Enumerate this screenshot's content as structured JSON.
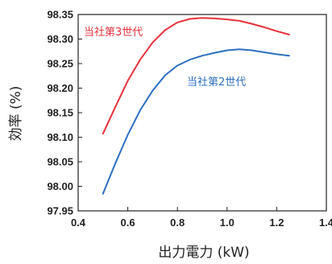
{
  "chart_data": {
    "type": "line",
    "title": "",
    "xlabel": "出力電力 (kW)",
    "ylabel": "効率 (%)",
    "xlim": [
      0.4,
      1.4
    ],
    "ylim": [
      97.95,
      98.35
    ],
    "x_ticks": [
      "0.4",
      "0.6",
      "0.8",
      "1.0",
      "1.2",
      "1.4"
    ],
    "y_ticks": [
      "97.95",
      "98.00",
      "98.05",
      "98.10",
      "98.15",
      "98.20",
      "98.25",
      "98.30",
      "98.35"
    ],
    "grid": false,
    "legend": "none",
    "series": [
      {
        "name": "当社第3世代",
        "color": "#e8323c",
        "points": [
          [
            0.5,
            98.107
          ],
          [
            0.55,
            98.162
          ],
          [
            0.6,
            98.215
          ],
          [
            0.65,
            98.258
          ],
          [
            0.7,
            98.293
          ],
          [
            0.75,
            98.318
          ],
          [
            0.8,
            98.334
          ],
          [
            0.85,
            98.341
          ],
          [
            0.9,
            98.343
          ],
          [
            0.95,
            98.342
          ],
          [
            1.0,
            98.34
          ],
          [
            1.05,
            98.337
          ],
          [
            1.1,
            98.331
          ],
          [
            1.15,
            98.324
          ],
          [
            1.2,
            98.316
          ],
          [
            1.25,
            98.309
          ]
        ]
      },
      {
        "name": "当社第2世代",
        "color": "#2d6fc0",
        "points": [
          [
            0.5,
            97.985
          ],
          [
            0.55,
            98.047
          ],
          [
            0.6,
            98.105
          ],
          [
            0.65,
            98.155
          ],
          [
            0.7,
            98.195
          ],
          [
            0.75,
            98.226
          ],
          [
            0.8,
            98.246
          ],
          [
            0.85,
            98.258
          ],
          [
            0.9,
            98.266
          ],
          [
            0.95,
            98.272
          ],
          [
            1.0,
            98.277
          ],
          [
            1.05,
            98.279
          ],
          [
            1.1,
            98.277
          ],
          [
            1.15,
            98.273
          ],
          [
            1.2,
            98.269
          ],
          [
            1.25,
            98.266
          ]
        ]
      }
    ]
  }
}
